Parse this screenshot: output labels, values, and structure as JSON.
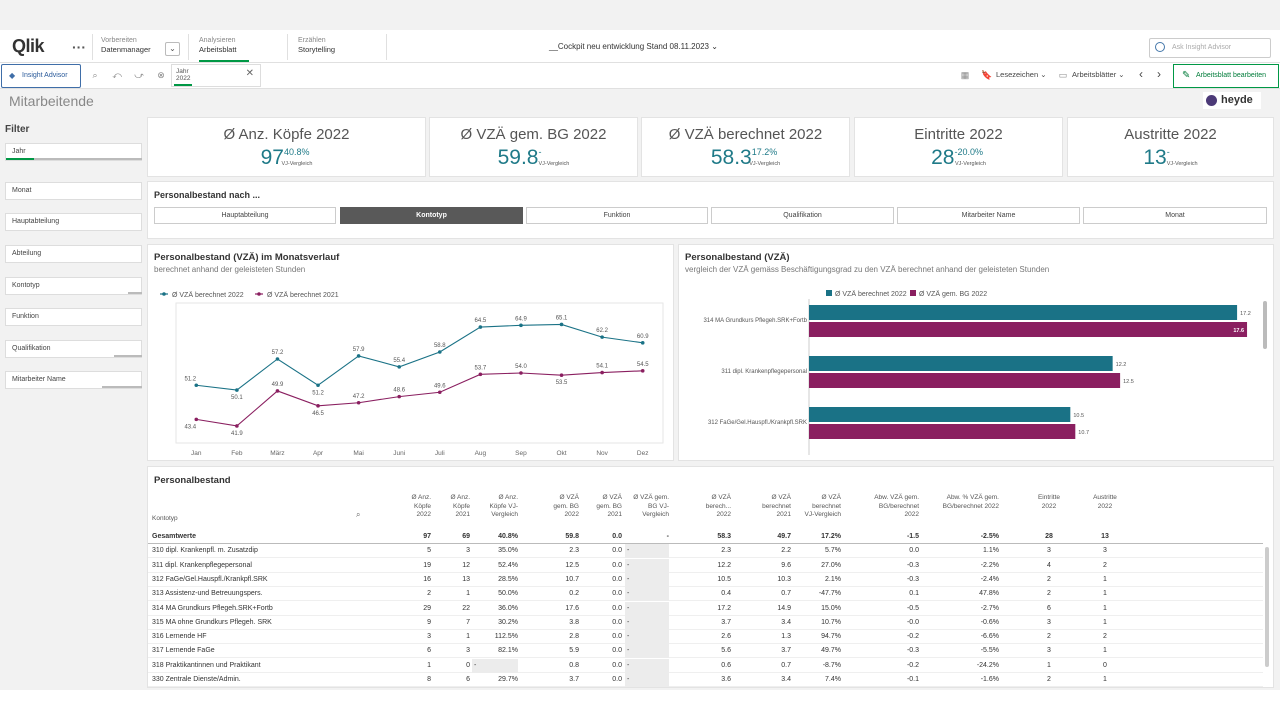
{
  "app": {
    "logo": "Qlik",
    "more": "···",
    "nav": [
      {
        "top": "Vorbereiten",
        "main": "Datenmanager"
      },
      {
        "top": "Analysieren",
        "main": "Arbeitsblatt"
      },
      {
        "top": "Erzählen",
        "main": "Storytelling"
      }
    ],
    "title": "__Cockpit neu entwicklung Stand 08.11.2023 ⌄",
    "search_placeholder": "Ask Insight Advisor"
  },
  "toolbar": {
    "insight_advisor": "Insight Advisor",
    "selection": {
      "field": "Jahr",
      "value": "2022"
    },
    "bookmarks": "Lesezeichen ⌄",
    "sheets": "Arbeitsblätter ⌄",
    "prev": "‹",
    "next": "›",
    "edit": "Arbeitsblatt bearbeiten"
  },
  "sheet": {
    "title": "Mitarbeitende",
    "brand": "heyde"
  },
  "filters": {
    "title": "Filter",
    "items": [
      "Jahr",
      "Monat",
      "Hauptabteilung",
      "Abteilung",
      "Kontotyp",
      "Funktion",
      "Qualifikation",
      "Mitarbeiter Name"
    ]
  },
  "kpis": [
    {
      "label": "Ø Anz. Köpfe 2022",
      "value": "97",
      "change": "40.8%",
      "sub": "VJ-Vergleich"
    },
    {
      "label": "Ø VZÄ gem. BG 2022",
      "value": "59.8",
      "change": "-",
      "sub": "VJ-Vergleich"
    },
    {
      "label": "Ø VZÄ berechnet 2022",
      "value": "58.3",
      "change": "17.2%",
      "sub": "VJ-Vergleich"
    },
    {
      "label": "Eintritte 2022",
      "value": "28",
      "change": "-20.0%",
      "sub": "VJ-Vergleich"
    },
    {
      "label": "Austritte 2022",
      "value": "13",
      "change": "-",
      "sub": "VJ-Vergleich"
    }
  ],
  "pbn": {
    "title": "Personalbestand nach ...",
    "buttons": [
      "Hauptabteilung",
      "Kontotyp",
      "Funktion",
      "Qualifikation",
      "Mitarbeiter Name",
      "Monat"
    ],
    "active": "Kontotyp"
  },
  "line_panel": {
    "title": "Personalbestand (VZÄ) im Monatsverlauf",
    "subtitle": "berechnet anhand der geleisteten Stunden"
  },
  "bar_panel": {
    "title": "Personalbestand (VZÄ)",
    "subtitle": "vergleich der VZÄ gemäss Beschäftigungsgrad zu den VZÄ berechnet anhand der geleisteten Stunden"
  },
  "colors": {
    "teal": "#1a7286",
    "magenta": "#8a1f60",
    "green": "#009845"
  },
  "chart_data": [
    {
      "type": "line",
      "categories": [
        "Jan",
        "Feb",
        "März",
        "Apr",
        "Mai",
        "Juni",
        "Juli",
        "Aug",
        "Sep",
        "Okt",
        "Nov",
        "Dez"
      ],
      "series": [
        {
          "name": "Ø VZÄ berechnet 2022",
          "values": [
            51.2,
            50.1,
            57.2,
            51.2,
            57.9,
            55.4,
            58.8,
            64.5,
            64.9,
            65.1,
            62.2,
            60.9
          ]
        },
        {
          "name": "Ø VZÄ berechnet 2021",
          "values": [
            43.4,
            41.9,
            49.9,
            46.5,
            47.2,
            48.6,
            49.6,
            53.7,
            54.0,
            53.5,
            54.1,
            54.5
          ]
        }
      ],
      "legend": "top-left",
      "ylim": [
        38,
        70
      ]
    },
    {
      "type": "bar",
      "orientation": "horizontal",
      "categories": [
        "314 MA Grundkurs Pflegeh.SRK+Fortb",
        "311 dipl. Krankenpflegepersonal",
        "312 FaGe/Gel.Hauspfl./Krankpfl.SRK"
      ],
      "series": [
        {
          "name": "Ø VZÄ berechnet 2022",
          "values": [
            17.2,
            12.2,
            10.5
          ]
        },
        {
          "name": "Ø VZÄ gem. BG 2022",
          "values": [
            17.6,
            12.5,
            10.7
          ]
        }
      ],
      "legend": "top",
      "xlim": [
        0,
        18
      ]
    }
  ],
  "table": {
    "title": "Personalbestand",
    "columns": [
      "Kontotyp",
      "Ø Anz. Köpfe 2022",
      "Ø Anz. Köpfe 2021",
      "Ø Anz. Köpfe VJ-Vergleich",
      "Ø VZÄ gem. BG 2022",
      "Ø VZÄ gem. BG 2021",
      "Ø VZÄ gem. BG VJ-Vergleich",
      "Ø VZÄ berech... 2022",
      "Ø VZÄ berechnet 2021",
      "Ø VZÄ berechnet VJ-Vergleich",
      "Abw. VZÄ gem. BG/berechnet 2022",
      "Abw. % VZÄ gem. BG/berechnet 2022",
      "Eintritte 2022",
      "Austritte 2022"
    ],
    "total": [
      "Gesamtwerte",
      "97",
      "69",
      "40.8%",
      "59.8",
      "0.0",
      "-",
      "58.3",
      "49.7",
      "17.2%",
      "-1.5",
      "-2.5%",
      "28",
      "13"
    ],
    "rows": [
      [
        "310 dipl. Krankenpfl. m. Zusatzdip",
        "5",
        "3",
        "35.0%",
        "2.3",
        "0.0",
        "-",
        "2.3",
        "2.2",
        "5.7%",
        "0.0",
        "1.1%",
        "3",
        "3"
      ],
      [
        "311 dipl. Krankenpflegepersonal",
        "19",
        "12",
        "52.4%",
        "12.5",
        "0.0",
        "-",
        "12.2",
        "9.6",
        "27.0%",
        "-0.3",
        "-2.2%",
        "4",
        "2"
      ],
      [
        "312 FaGe/Gel.Hauspfl./Krankpfl.SRK",
        "16",
        "13",
        "28.5%",
        "10.7",
        "0.0",
        "-",
        "10.5",
        "10.3",
        "2.1%",
        "-0.3",
        "-2.4%",
        "2",
        "1"
      ],
      [
        "313 Assistenz-und Betreuungspers.",
        "2",
        "1",
        "50.0%",
        "0.2",
        "0.0",
        "-",
        "0.4",
        "0.7",
        "-47.7%",
        "0.1",
        "47.8%",
        "2",
        "1"
      ],
      [
        "314 MA Grundkurs Pflegeh.SRK+Fortb",
        "29",
        "22",
        "36.0%",
        "17.6",
        "0.0",
        "-",
        "17.2",
        "14.9",
        "15.0%",
        "-0.5",
        "-2.7%",
        "6",
        "1"
      ],
      [
        "315 MA ohne Grundkurs Pflegeh. SRK",
        "9",
        "7",
        "30.2%",
        "3.8",
        "0.0",
        "-",
        "3.7",
        "3.4",
        "10.7%",
        "-0.0",
        "-0.6%",
        "3",
        "1"
      ],
      [
        "316 Lernende HF",
        "3",
        "1",
        "112.5%",
        "2.8",
        "0.0",
        "-",
        "2.6",
        "1.3",
        "94.7%",
        "-0.2",
        "-6.6%",
        "2",
        "2"
      ],
      [
        "317 Lernende FaGe",
        "6",
        "3",
        "82.1%",
        "5.9",
        "0.0",
        "-",
        "5.6",
        "3.7",
        "49.7%",
        "-0.3",
        "-5.5%",
        "3",
        "1"
      ],
      [
        "318 Praktikantinnen und Praktikant",
        "1",
        "0",
        "-",
        "0.8",
        "0.0",
        "-",
        "0.6",
        "0.7",
        "-8.7%",
        "-0.2",
        "-24.2%",
        "1",
        "0"
      ],
      [
        "330 Zentrale Dienste/Admin.",
        "8",
        "6",
        "29.7%",
        "3.7",
        "0.0",
        "-",
        "3.6",
        "3.4",
        "7.4%",
        "-0.1",
        "-1.6%",
        "2",
        "1"
      ]
    ]
  }
}
